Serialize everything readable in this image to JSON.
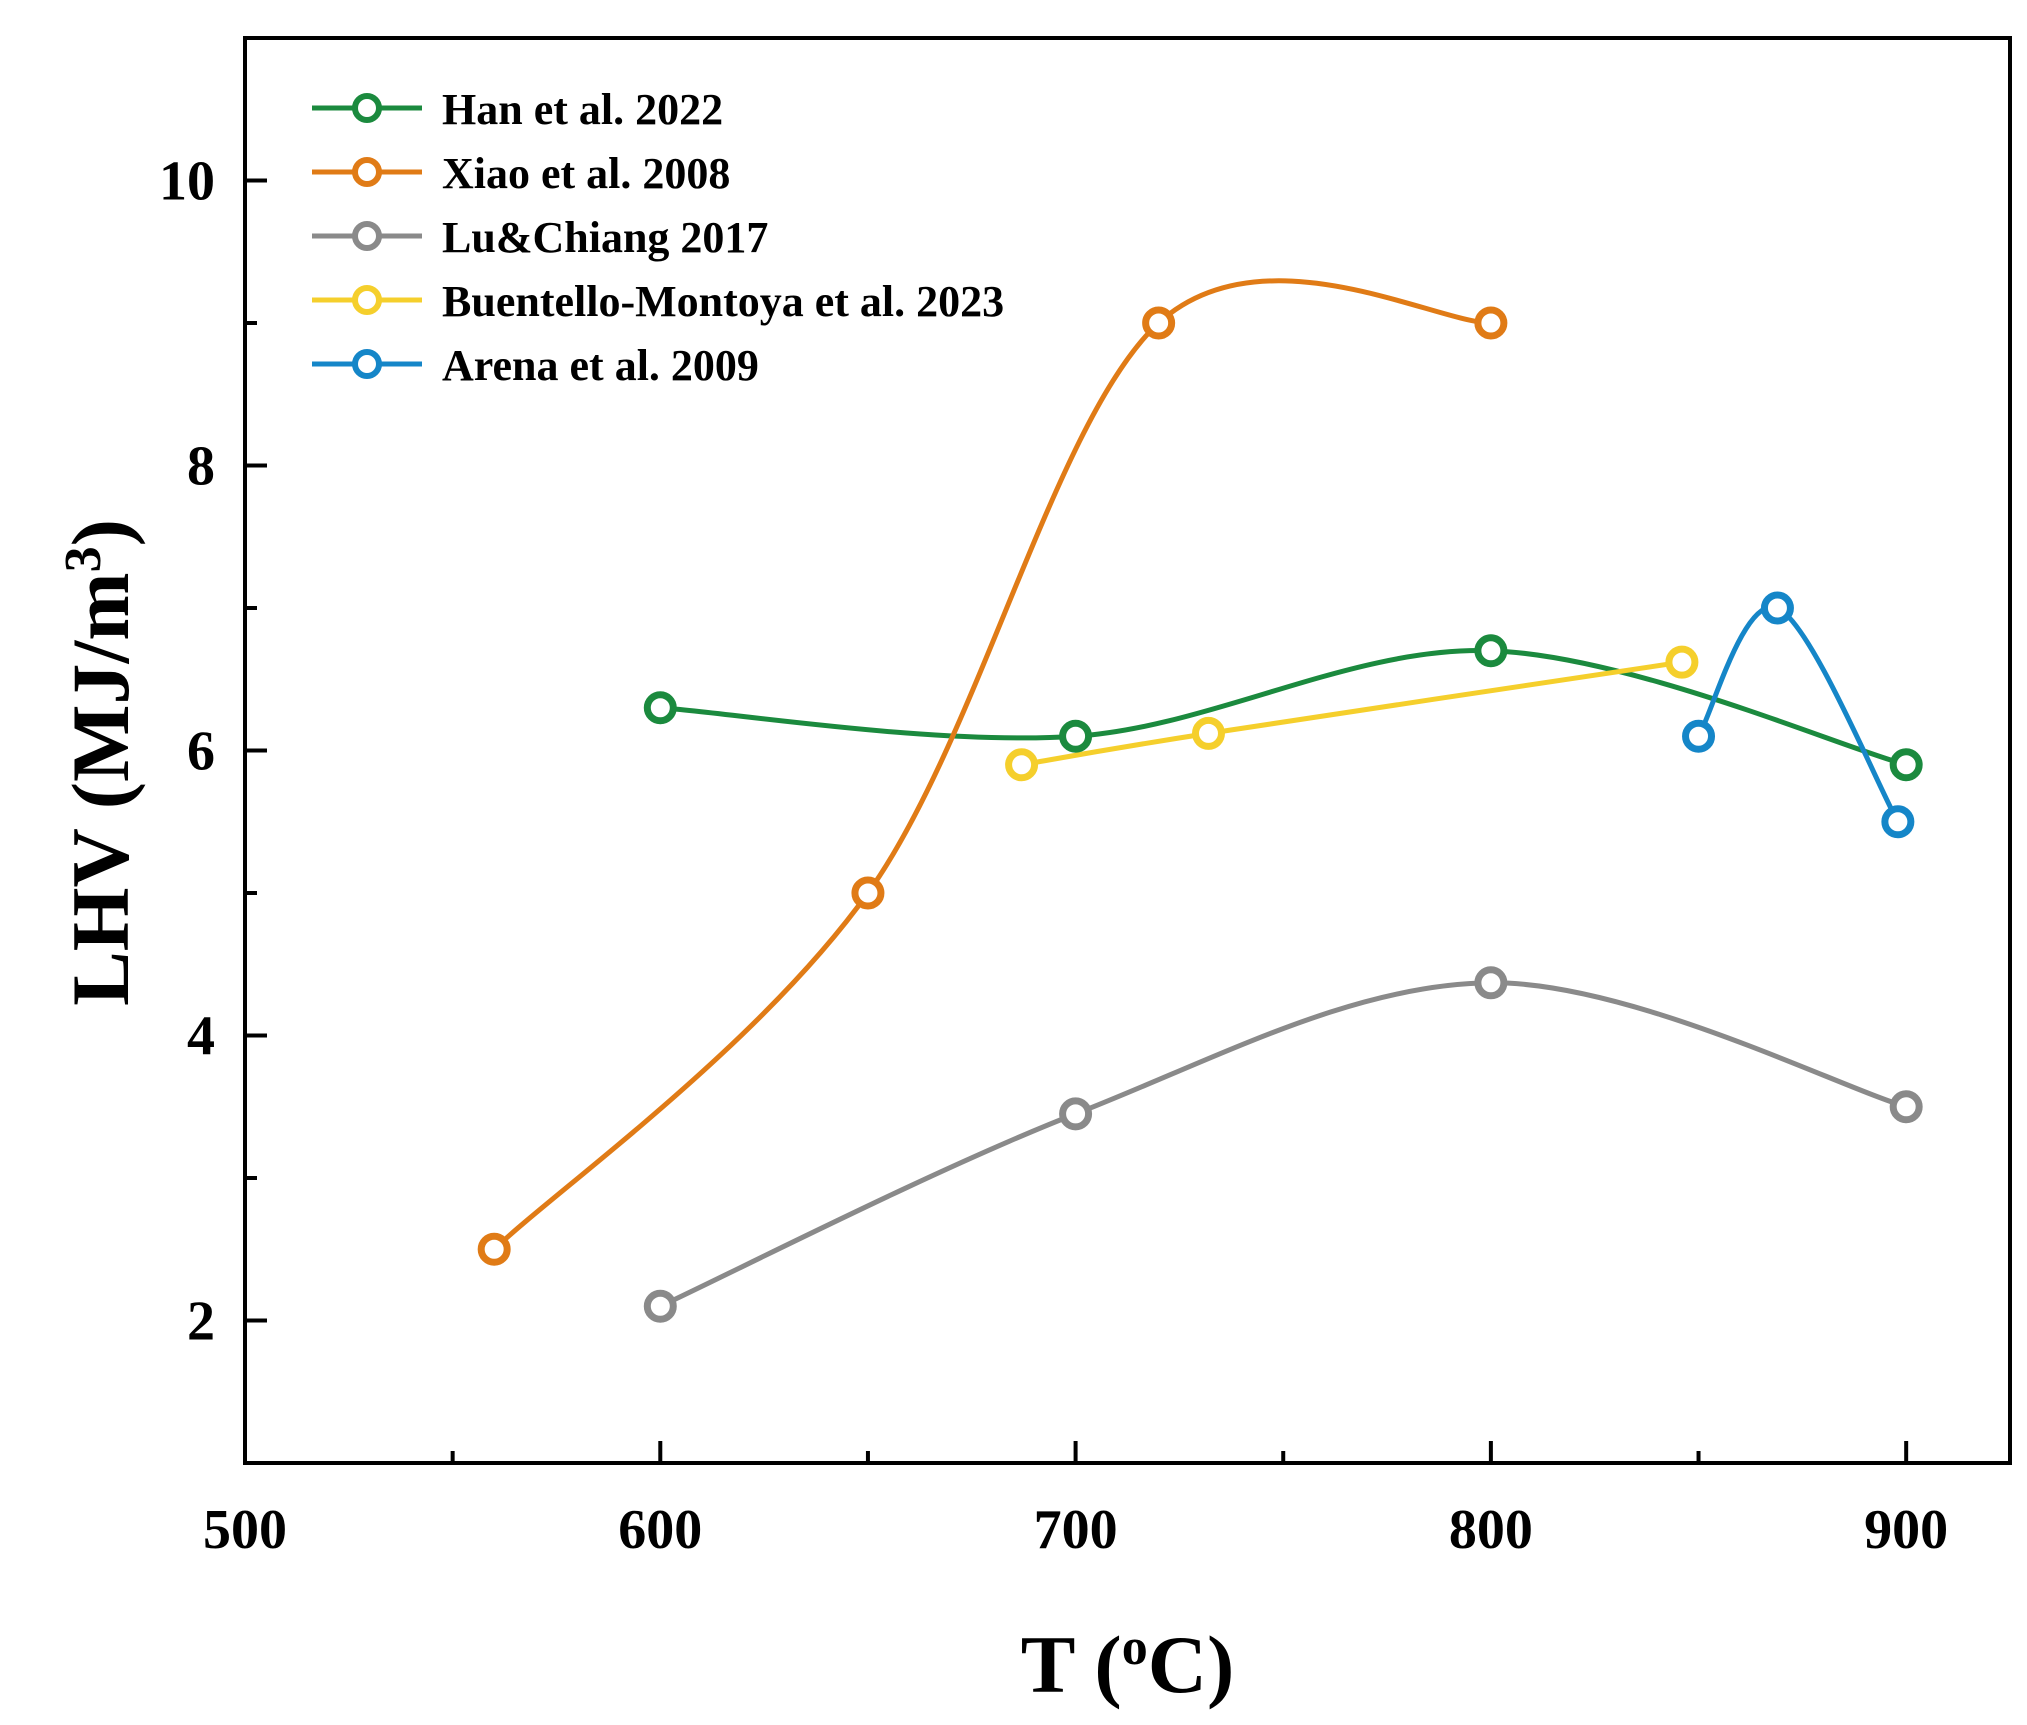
{
  "chart_data": {
    "type": "line",
    "title": "",
    "xlabel": "T (",
    "xlabel_sup": "o",
    "xlabel_tail": "C)",
    "ylabel": "LHV (MJ/m",
    "ylabel_sup": "3",
    "ylabel_tail": ")",
    "xlim": [
      500,
      925
    ],
    "ylim": [
      1,
      11
    ],
    "x_ticks": [
      500,
      600,
      700,
      800,
      900
    ],
    "x_tick_labels": [
      "500",
      "600",
      "700",
      "800",
      "900"
    ],
    "x_minor_ticks": [
      550,
      650,
      750,
      850
    ],
    "y_ticks": [
      2,
      4,
      6,
      8,
      10
    ],
    "y_tick_labels": [
      "2",
      "4",
      "6",
      "8",
      "10"
    ],
    "y_minor_ticks": [
      3,
      5,
      7,
      9
    ],
    "grid": false,
    "legend_position": "top-left",
    "series": [
      {
        "name": "Han et al. 2022",
        "color": "#1b8a3e",
        "x": [
          600,
          700,
          800,
          900
        ],
        "y": [
          6.3,
          6.1,
          6.7,
          5.9
        ]
      },
      {
        "name": "Xiao et al. 2008",
        "color": "#e07b16",
        "x": [
          560,
          650,
          720,
          800
        ],
        "y": [
          2.5,
          5.0,
          9.0,
          9.0
        ]
      },
      {
        "name": "Lu&Chiang 2017",
        "color": "#8a8a8a",
        "x": [
          600,
          700,
          800,
          900
        ],
        "y": [
          2.1,
          3.45,
          4.37,
          3.5
        ]
      },
      {
        "name": "Buentello-Montoya et al. 2023",
        "color": "#f5cf2c",
        "x": [
          687,
          732,
          846
        ],
        "y": [
          5.9,
          6.12,
          6.62
        ]
      },
      {
        "name": "Arena et al. 2009",
        "color": "#1586c8",
        "x": [
          850,
          869,
          898
        ],
        "y": [
          6.1,
          7.0,
          5.5
        ]
      }
    ]
  }
}
